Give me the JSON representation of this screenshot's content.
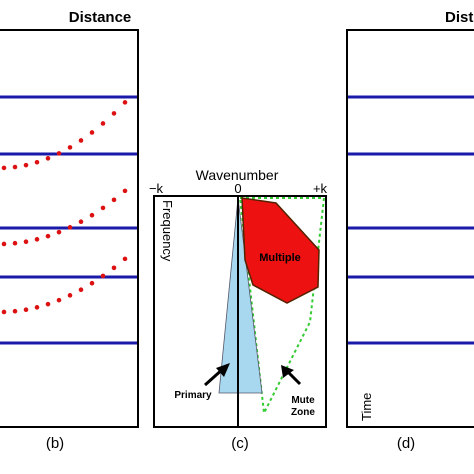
{
  "panel_b": {
    "axis_title": "Distance",
    "caption": "(b)"
  },
  "panel_c": {
    "axis_title": "Wavenumber",
    "tick_neg_k": "−k",
    "tick_zero": "0",
    "tick_pos_k": "+k",
    "y_axis_label": "Frequency",
    "region_multiple": "Multiple",
    "label_primary": "Primary",
    "label_mute_line1": "Mute",
    "label_mute_line2": "Zone",
    "caption": "(c)"
  },
  "panel_d": {
    "axis_title": "Dist",
    "y_axis_label": "Time",
    "caption": "(d)"
  },
  "colors": {
    "reflector_line": "#1a1aa8",
    "multiple_dots": "#dd1111",
    "multiple_region": "#ee1111",
    "primary_region": "#a8d8f0",
    "mute_zone_outline": "#33cc33",
    "frame": "#000000"
  }
}
